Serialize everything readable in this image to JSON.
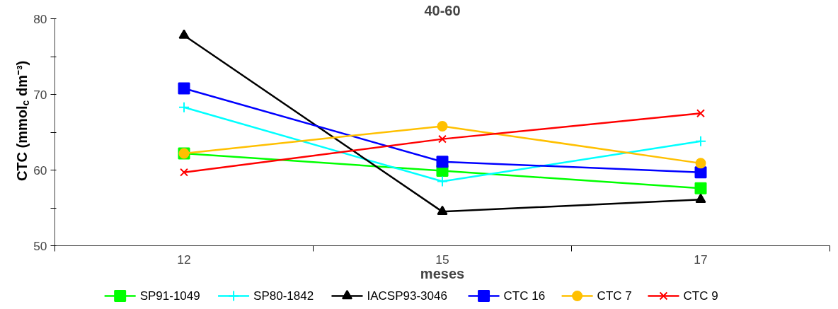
{
  "chart_data": {
    "type": "line",
    "title": "40-60",
    "xlabel": "meses",
    "ylabel": "CTC (mmol$_{c}$ dm⁻³)",
    "categories": [
      "12",
      "15",
      "17"
    ],
    "ylim": [
      50,
      80
    ],
    "yticks": [
      50,
      {
        "value": 55,
        "label": null
      },
      60,
      {
        "value": 65,
        "label": null
      },
      70,
      {
        "value": 75,
        "label": null
      },
      80
    ],
    "grid": false,
    "legend": "bottom",
    "line_style": "solid",
    "series": [
      {
        "name": "SP91-1049",
        "color": "#00ff00",
        "marker": "square",
        "values": [
          62.2,
          59.9,
          57.6
        ]
      },
      {
        "name": "SP80-1842",
        "color": "#00ffff",
        "marker": "cross",
        "values": [
          68.3,
          58.5,
          63.8
        ]
      },
      {
        "name": "IACSP93-3046",
        "color": "#000000",
        "marker": "triangle",
        "values": [
          77.8,
          54.5,
          56.1
        ]
      },
      {
        "name": "CTC 16",
        "color": "#0000ff",
        "marker": "square",
        "values": [
          70.8,
          61.1,
          59.7
        ]
      },
      {
        "name": "CTC 7",
        "color": "#ffc000",
        "marker": "circle",
        "values": [
          62.2,
          65.8,
          60.9
        ]
      },
      {
        "name": "CTC 9",
        "color": "#ff0000",
        "marker": "x",
        "values": [
          59.7,
          64.1,
          67.5
        ]
      }
    ]
  }
}
